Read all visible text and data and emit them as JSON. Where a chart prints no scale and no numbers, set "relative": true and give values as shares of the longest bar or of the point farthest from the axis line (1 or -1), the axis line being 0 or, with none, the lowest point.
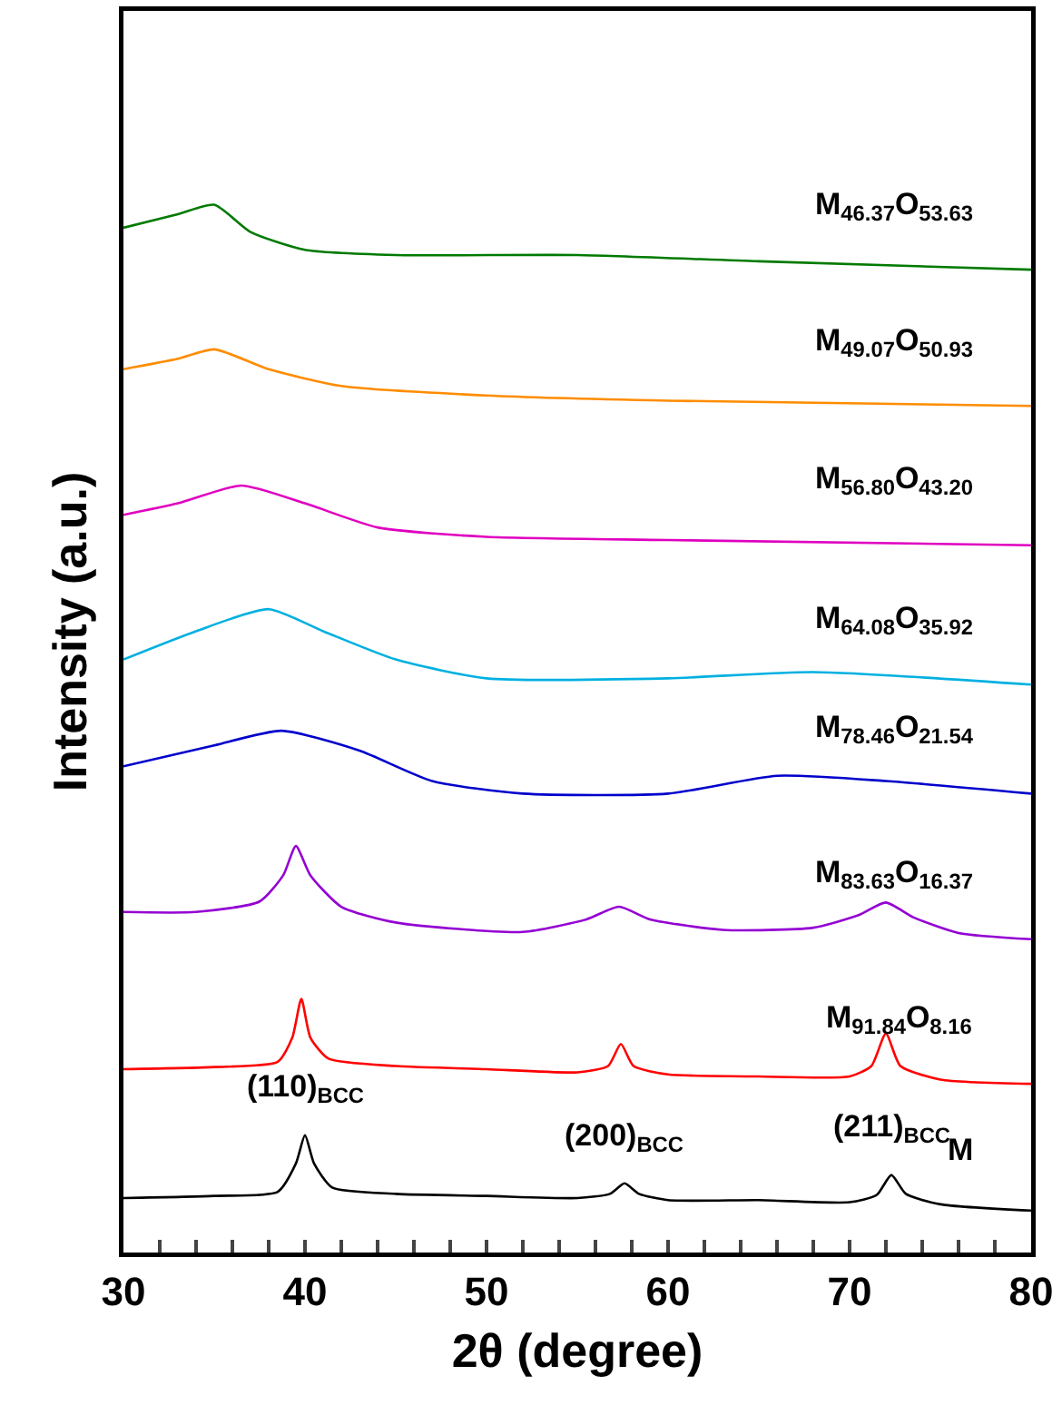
{
  "chart_data": {
    "type": "line",
    "relative": true,
    "xlabel": "2θ (degree)",
    "ylabel": "Intensity (a.u.)",
    "xlim": [
      30,
      80
    ],
    "xticks": [
      30,
      {
        "value": 32,
        "label": null
      },
      {
        "value": 34,
        "label": null
      },
      {
        "value": 36,
        "label": null
      },
      {
        "value": 38,
        "label": null
      },
      40,
      {
        "value": 42,
        "label": null
      },
      {
        "value": 44,
        "label": null
      },
      {
        "value": 46,
        "label": null
      },
      {
        "value": 48,
        "label": null
      },
      50,
      {
        "value": 52,
        "label": null
      },
      {
        "value": 54,
        "label": null
      },
      {
        "value": 56,
        "label": null
      },
      {
        "value": 58,
        "label": null
      },
      60,
      {
        "value": 62,
        "label": null
      },
      {
        "value": 64,
        "label": null
      },
      {
        "value": 66,
        "label": null
      },
      {
        "value": 68,
        "label": null
      },
      70,
      {
        "value": 72,
        "label": null
      },
      {
        "value": 74,
        "label": null
      },
      {
        "value": 76,
        "label": null
      },
      {
        "value": 78,
        "label": null
      },
      80
    ],
    "legend": false,
    "grid": false,
    "marker": "none",
    "line_style": "solid",
    "annotations": [
      {
        "text": "(110)$_{BCC}$",
        "x": 40,
        "y": 0.112
      },
      {
        "text": "(200)$_{BCC}$",
        "x": 57.6,
        "y": 0.066
      },
      {
        "text": "(211)$_{BCC}$",
        "x": 72.3,
        "y": 0.074
      }
    ],
    "series": [
      {
        "name": "M",
        "color": "#000000",
        "x": [
          30,
          35,
          38.5,
          39.5,
          40,
          40.5,
          41.5,
          45,
          50,
          55,
          56.8,
          57.6,
          58.4,
          60,
          65,
          70,
          71.5,
          72.3,
          73.1,
          75,
          80
        ],
        "values": [
          0.052,
          0.054,
          0.058,
          0.085,
          0.112,
          0.085,
          0.062,
          0.056,
          0.054,
          0.052,
          0.056,
          0.066,
          0.056,
          0.05,
          0.05,
          0.048,
          0.055,
          0.074,
          0.056,
          0.046,
          0.04
        ]
      },
      {
        "name": "M$_{91.84}$O$_{8.16}$",
        "color": "#ff0000",
        "x": [
          30,
          35,
          38.5,
          39.3,
          39.8,
          40.3,
          41.3,
          45,
          50,
          55,
          56.7,
          57.4,
          58.1,
          60,
          65,
          70,
          71.2,
          72,
          72.8,
          75,
          80
        ],
        "values": [
          0.175,
          0.177,
          0.182,
          0.205,
          0.242,
          0.205,
          0.185,
          0.178,
          0.175,
          0.172,
          0.178,
          0.199,
          0.178,
          0.17,
          0.168,
          0.168,
          0.178,
          0.209,
          0.178,
          0.165,
          0.161
        ]
      },
      {
        "name": "M$_{83.63}$O$_{16.37}$",
        "color": "#9400d3",
        "x": [
          30,
          34,
          37.5,
          38.8,
          39.5,
          40.3,
          42,
          45,
          52,
          55.5,
          57.3,
          59,
          63,
          68,
          70.5,
          72,
          73.5,
          76,
          80
        ],
        "values": [
          0.325,
          0.325,
          0.335,
          0.36,
          0.388,
          0.36,
          0.33,
          0.315,
          0.306,
          0.318,
          0.33,
          0.318,
          0.308,
          0.31,
          0.322,
          0.334,
          0.32,
          0.305,
          0.299
        ]
      },
      {
        "name": "M$_{78.46}$O$_{21.54}$",
        "color": "#0000cc",
        "x": [
          30,
          35,
          38.7,
          43,
          47,
          52,
          60,
          66,
          72,
          80
        ],
        "values": [
          0.464,
          0.484,
          0.498,
          0.479,
          0.45,
          0.438,
          0.438,
          0.455,
          0.45,
          0.438
        ]
      },
      {
        "name": "M$_{64.08}$O$_{35.92}$",
        "color": "#00b0e0",
        "x": [
          30,
          34,
          38,
          41,
          45,
          50,
          60,
          68,
          80
        ],
        "values": [
          0.566,
          0.593,
          0.614,
          0.593,
          0.566,
          0.548,
          0.548,
          0.554,
          0.542
        ]
      },
      {
        "name": "M$_{56.80}$O$_{43.20}$",
        "color": "#e000c0",
        "x": [
          30,
          33,
          36.5,
          40,
          44,
          50,
          60,
          80
        ],
        "values": [
          0.704,
          0.715,
          0.732,
          0.715,
          0.692,
          0.683,
          0.68,
          0.675
        ]
      },
      {
        "name": "M$_{49.07}$O$_{50.93}$",
        "color": "#ff8c00",
        "x": [
          30,
          33,
          35,
          38,
          42,
          50,
          60,
          80
        ],
        "values": [
          0.843,
          0.853,
          0.862,
          0.843,
          0.827,
          0.818,
          0.813,
          0.808
        ]
      },
      {
        "name": "M$_{46.37}$O$_{53.63}$",
        "color": "#007a00",
        "x": [
          30,
          33,
          35,
          37,
          40,
          45,
          55,
          65,
          80
        ],
        "values": [
          0.978,
          0.991,
          1.0,
          0.974,
          0.957,
          0.952,
          0.952,
          0.946,
          0.938
        ]
      }
    ]
  }
}
